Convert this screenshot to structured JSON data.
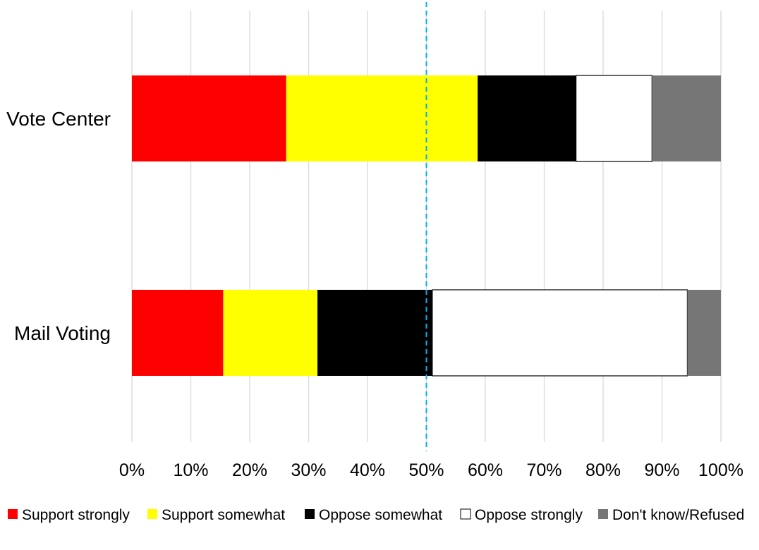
{
  "chart_data": {
    "type": "bar",
    "orientation": "horizontal",
    "stacked": true,
    "percent_stacked": true,
    "categories": [
      "Vote Center",
      "Mail Voting"
    ],
    "series": [
      {
        "name": "Support strongly",
        "color": "#ff0000",
        "values": [
          26.2,
          15.5
        ]
      },
      {
        "name": "Support somewhat",
        "color": "#ffff00",
        "values": [
          32.5,
          16.0
        ]
      },
      {
        "name": "Oppose somewhat",
        "color": "#000000",
        "values": [
          16.7,
          19.5
        ]
      },
      {
        "name": "Oppose strongly",
        "color": "#ffffff",
        "values": [
          12.9,
          43.3
        ]
      },
      {
        "name": "Don't know/Refused",
        "color": "#767676",
        "values": [
          11.7,
          5.7
        ]
      }
    ],
    "xlim": [
      0,
      100
    ],
    "x_ticks": [
      "0%",
      "10%",
      "20%",
      "30%",
      "40%",
      "50%",
      "60%",
      "70%",
      "80%",
      "90%",
      "100%"
    ],
    "grid": "vertical",
    "reference_line": {
      "value": 50,
      "style": "dashed",
      "color": "#00b0f0"
    },
    "legend_position": "bottom",
    "title": "",
    "xlabel": "",
    "ylabel": ""
  }
}
